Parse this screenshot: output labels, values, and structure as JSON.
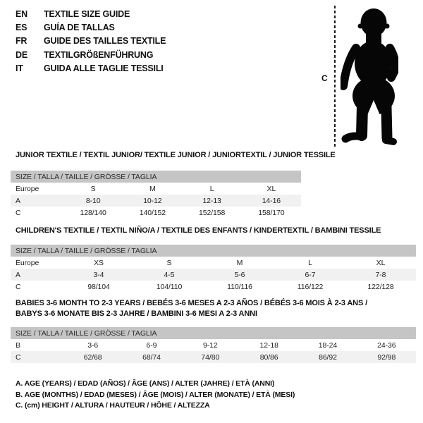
{
  "page": {
    "background": "#ffffff",
    "text_color": "#1b1b1b",
    "header_bar_color": "#c5c5c5",
    "shaded_row_color": "#f1f1f1"
  },
  "languages": {
    "items": [
      {
        "code": "EN",
        "title": "TEXTILE SIZE GUIDE"
      },
      {
        "code": "ES",
        "title": "GUÍA DE TALLAS"
      },
      {
        "code": "FR",
        "title": "GUIDE DES TAILLES TEXTILE"
      },
      {
        "code": "DE",
        "title": "TEXTILGRÖßENFÜHRUNG"
      },
      {
        "code": "IT",
        "title": "GUIDA ALLE TAGLIE TESSILI"
      }
    ]
  },
  "figure": {
    "label": "C",
    "icon": "baby-silhouette"
  },
  "tables": [
    {
      "title": "JUNIOR TEXTILE / TEXTIL JUNIOR/ TEXTILE JUNIOR / JUNIORTEXTIL / JUNIOR TESSILE",
      "size_header": "SIZE / TALLA / TAILLE / GRÖSSE / TAGLIA",
      "region_label": "Europe",
      "size_labels": [
        "S",
        "M",
        "L",
        "XL"
      ],
      "rows": [
        {
          "label": "A",
          "values": [
            "8-10",
            "10-12",
            "12-13",
            "14-16"
          ],
          "shaded": true
        },
        {
          "label": "C",
          "values": [
            "128/140",
            "140/152",
            "152/158",
            "158/170"
          ],
          "shaded": false
        }
      ]
    },
    {
      "title": "CHILDREN'S TEXTILE / TEXTIL NIÑO/A / TEXTILE DES ENFANTS / KINDERTEXTIL / BAMBINI TESSILE",
      "size_header": "SIZE / TALLA / TAILLE / GRÖSSE / TAGLIA",
      "region_label": "Europe",
      "size_labels": [
        "XS",
        "S",
        "M",
        "L",
        "XL"
      ],
      "rows": [
        {
          "label": "A",
          "values": [
            "3-4",
            "4-5",
            "5-6",
            "6-7",
            "7-8"
          ],
          "shaded": true
        },
        {
          "label": "C",
          "values": [
            "98/104",
            "104/110",
            "110/116",
            "116/122",
            "122/128"
          ],
          "shaded": false
        }
      ]
    },
    {
      "title": "BABIES 3-6 MONTH TO 2-3 YEARS / BEBÉS 3-6 MESES A 2-3 AÑOS / BÉBÉS 3-6 MOIS À 2-3 ANS /\nBABYS 3-6 MONATE BIS 2-3 JAHRE / BAMBINI 3-6 MESI A 2-3 ANNI",
      "size_header": "SIZE / TALLA / TAILLE / GRÖSSE / TAGLIA",
      "region_label": null,
      "size_labels": null,
      "rows": [
        {
          "label": "B",
          "values": [
            "3-6",
            "6-9",
            "9-12",
            "12-18",
            "18-24",
            "24-36"
          ],
          "shaded": false
        },
        {
          "label": "C",
          "values": [
            "62/68",
            "68/74",
            "74/80",
            "80/86",
            "86/92",
            "92/98"
          ],
          "shaded": true
        }
      ]
    }
  ],
  "notes": [
    "A. AGE (YEARS) / EDAD (AÑOS) / ÂGE (ANS) / ALTER (JAHRE) / ETÀ (ANNI)",
    "B. AGE (MONTHS) / EDAD (MESES) / ÂGE (MOIS) / ALTER (MONATE) / ETÀ (MESI)",
    "C. (cm) HEIGHT / ALTURA / HAUTEUR / HÖHE / ALTEZZA"
  ]
}
